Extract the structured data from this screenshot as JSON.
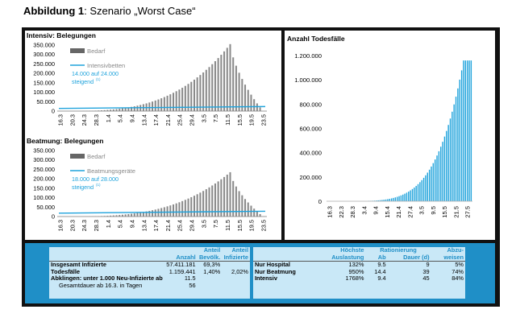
{
  "figure": {
    "label": "Abbildung 1",
    "title": ": Szenario „Worst Case“"
  },
  "colors": {
    "frame": "#111111",
    "blue": "#1f8fc7",
    "bar": "#8a8a8a",
    "light_table": "#c9e8f7",
    "line": "#1fa3dc"
  },
  "chart_data": [
    {
      "id": "intensiv",
      "type": "bar",
      "title": "Intensiv: Belegungen",
      "ylim": [
        0,
        350000
      ],
      "yticks": [
        "0",
        "50.000",
        "100.000",
        "150.000",
        "200.000",
        "250.000",
        "300.000",
        "350.000"
      ],
      "xticks": [
        "16.3",
        "20.3",
        "24.3",
        "28.3",
        "1.4",
        "5.4",
        "9.4",
        "13.4",
        "17.4",
        "21.4",
        "25.4",
        "29.4",
        "3.5",
        "7.5",
        "11.5",
        "15.5",
        "19.5",
        "23.5"
      ],
      "legend": {
        "bar": "Bedarf",
        "line": "Intensivbetten"
      },
      "annotation": "14.000 auf 24.000",
      "annotation2": "steigend",
      "annotation_sup": "(1)",
      "line_start": 14000,
      "line_end": 24000,
      "peak": 355000,
      "peak_index": 57
    },
    {
      "id": "beatmung",
      "type": "bar",
      "title": "Beatmung: Belegungen",
      "ylim": [
        0,
        350000
      ],
      "yticks": [
        "0",
        "50.000",
        "100.000",
        "150.000",
        "200.000",
        "250.000",
        "300.000",
        "350.000"
      ],
      "xticks": [
        "16.3",
        "20.3",
        "24.3",
        "28.3",
        "1.4",
        "5.4",
        "9.4",
        "13.4",
        "17.4",
        "21.4",
        "25.4",
        "29.4",
        "3.5",
        "7.5",
        "11.5",
        "15.5",
        "19.5",
        "23.5"
      ],
      "legend": {
        "bar": "Bedarf",
        "line": "Beatmungsgeräte"
      },
      "annotation": "18.000 auf 28.000",
      "annotation2": "steigend",
      "annotation_sup": "(1)",
      "line_start": 18000,
      "line_end": 28000,
      "peak": 235000,
      "peak_index": 57
    },
    {
      "id": "todesfaelle",
      "type": "bar",
      "title": "Anzahl Todesfälle",
      "ylim": [
        0,
        1200000
      ],
      "yticks": [
        "0",
        "200.000",
        "400.000",
        "600.000",
        "800.000",
        "1.000.000",
        "1.200.000"
      ],
      "xticks": [
        "16.3",
        "22.3",
        "28.3",
        "3.4",
        "9.4",
        "15.4",
        "21.4",
        "27.4",
        "3.5",
        "9.5",
        "15.5",
        "21.5",
        "27.5"
      ],
      "final": 1159441
    }
  ],
  "table_left": {
    "header": [
      "",
      "Anzahl",
      "Anteil Bevölk.",
      "Anteil Infizierte"
    ],
    "header_top": [
      "",
      "",
      "Anteil",
      "Anteil"
    ],
    "header_bottom": [
      "",
      "Anzahl",
      "Bevölk.",
      "Infizierte"
    ],
    "rows": [
      [
        "Insgesamt Infizierte",
        "57.411.181",
        "69,3%",
        ""
      ],
      [
        "Todesfälle",
        "1.159.441",
        "1,40%",
        "2,02%"
      ],
      [
        "Abklingen: unter 1.000 Neu-Infizierte ab",
        "11.5",
        "",
        ""
      ],
      [
        "Gesamtdauer ab 16.3. in Tagen",
        "56",
        "",
        ""
      ]
    ]
  },
  "table_right": {
    "header_top": [
      "",
      "Höchste",
      "Rationierung",
      "",
      "Abzu-"
    ],
    "header_bottom": [
      "",
      "Auslastung",
      "Ab",
      "Dauer (d)",
      "weisen"
    ],
    "rows": [
      [
        "Nur Hospital",
        "132%",
        "9.5",
        "9",
        "5%"
      ],
      [
        "Nur Beatmung",
        "950%",
        "14.4",
        "39",
        "74%"
      ],
      [
        "Intensiv",
        "1768%",
        "9.4",
        "45",
        "84%"
      ]
    ]
  }
}
